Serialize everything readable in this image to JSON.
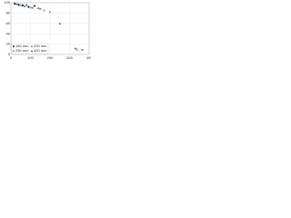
{
  "chart_data": {
    "type": "scatter",
    "x_label": "C, m",
    "xlim": [
      0,
      400
    ],
    "xticks": [
      0,
      100,
      200,
      300,
      400
    ],
    "ylim": [
      0,
      100
    ],
    "yticks": [
      0,
      20,
      40,
      60,
      80,
      100
    ],
    "grid": true,
    "legend": "lower-left",
    "series": [
      {
        "name": "160 mm",
        "color": "#222222",
        "marker": "circle",
        "x": [
          20,
          40,
          60,
          90,
          120
        ],
        "values": [
          98,
          96,
          95,
          92,
          94
        ]
      },
      {
        "name": "200 mm",
        "color": "#888888",
        "marker": "circle",
        "x": [
          30,
          70,
          110,
          150
        ],
        "values": [
          97,
          93,
          90,
          88
        ]
      },
      {
        "name": "250 mm",
        "color": "#6cc4e8",
        "marker": "square",
        "x": [
          50,
          100,
          170,
          200
        ],
        "values": [
          95,
          91,
          85,
          82
        ]
      },
      {
        "name": "400 mm",
        "color": "#1a3a8a",
        "marker": "triangle",
        "x": [
          80,
          140,
          250,
          330
        ],
        "values": [
          96,
          90,
          60,
          12
        ]
      }
    ]
  }
}
